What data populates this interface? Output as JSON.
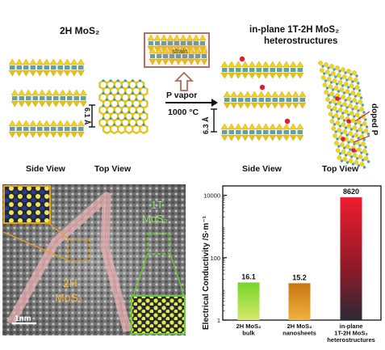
{
  "top": {
    "left_title": "2H MoS₂",
    "right_title_line1": "in-plane 1T-2H MoS₂",
    "right_title_line2": "heterostructures",
    "inset_label": "strain",
    "arrow_label_line1": "P vapor",
    "arrow_label_line2": "1000 °C",
    "spacing_left": "6.1 Å",
    "spacing_right": "6.3 Å",
    "doped_label": "doped P",
    "side_view_left": "Side View",
    "top_view_left": "Top View",
    "side_view_right": "Side View",
    "top_view_right": "Top View"
  },
  "tem": {
    "label_1t_line1": "1T",
    "label_1t_line2": "MoS₂",
    "label_2h_line1": "2H",
    "label_2h_line2": "MoS₂",
    "scale_bar": "1nm"
  },
  "chart_data": {
    "type": "bar",
    "ylabel": "Electrical Conductivity /S·m⁻¹",
    "yscale": "log",
    "ylim": [
      1,
      20000
    ],
    "yticks": [
      1,
      100,
      10000
    ],
    "categories": [
      [
        "2H MoS₂",
        "bulk"
      ],
      [
        "2H MoS₂",
        "nanosheets"
      ],
      [
        "in-plane",
        "1T-2H MoS₂",
        "heterostructures"
      ]
    ],
    "values": [
      16.1,
      15.2,
      8620
    ],
    "value_labels": [
      "16.1",
      "15.2",
      "8620"
    ],
    "colors": [
      "#5fc21e",
      "#d98b14",
      "#d81f35"
    ]
  }
}
